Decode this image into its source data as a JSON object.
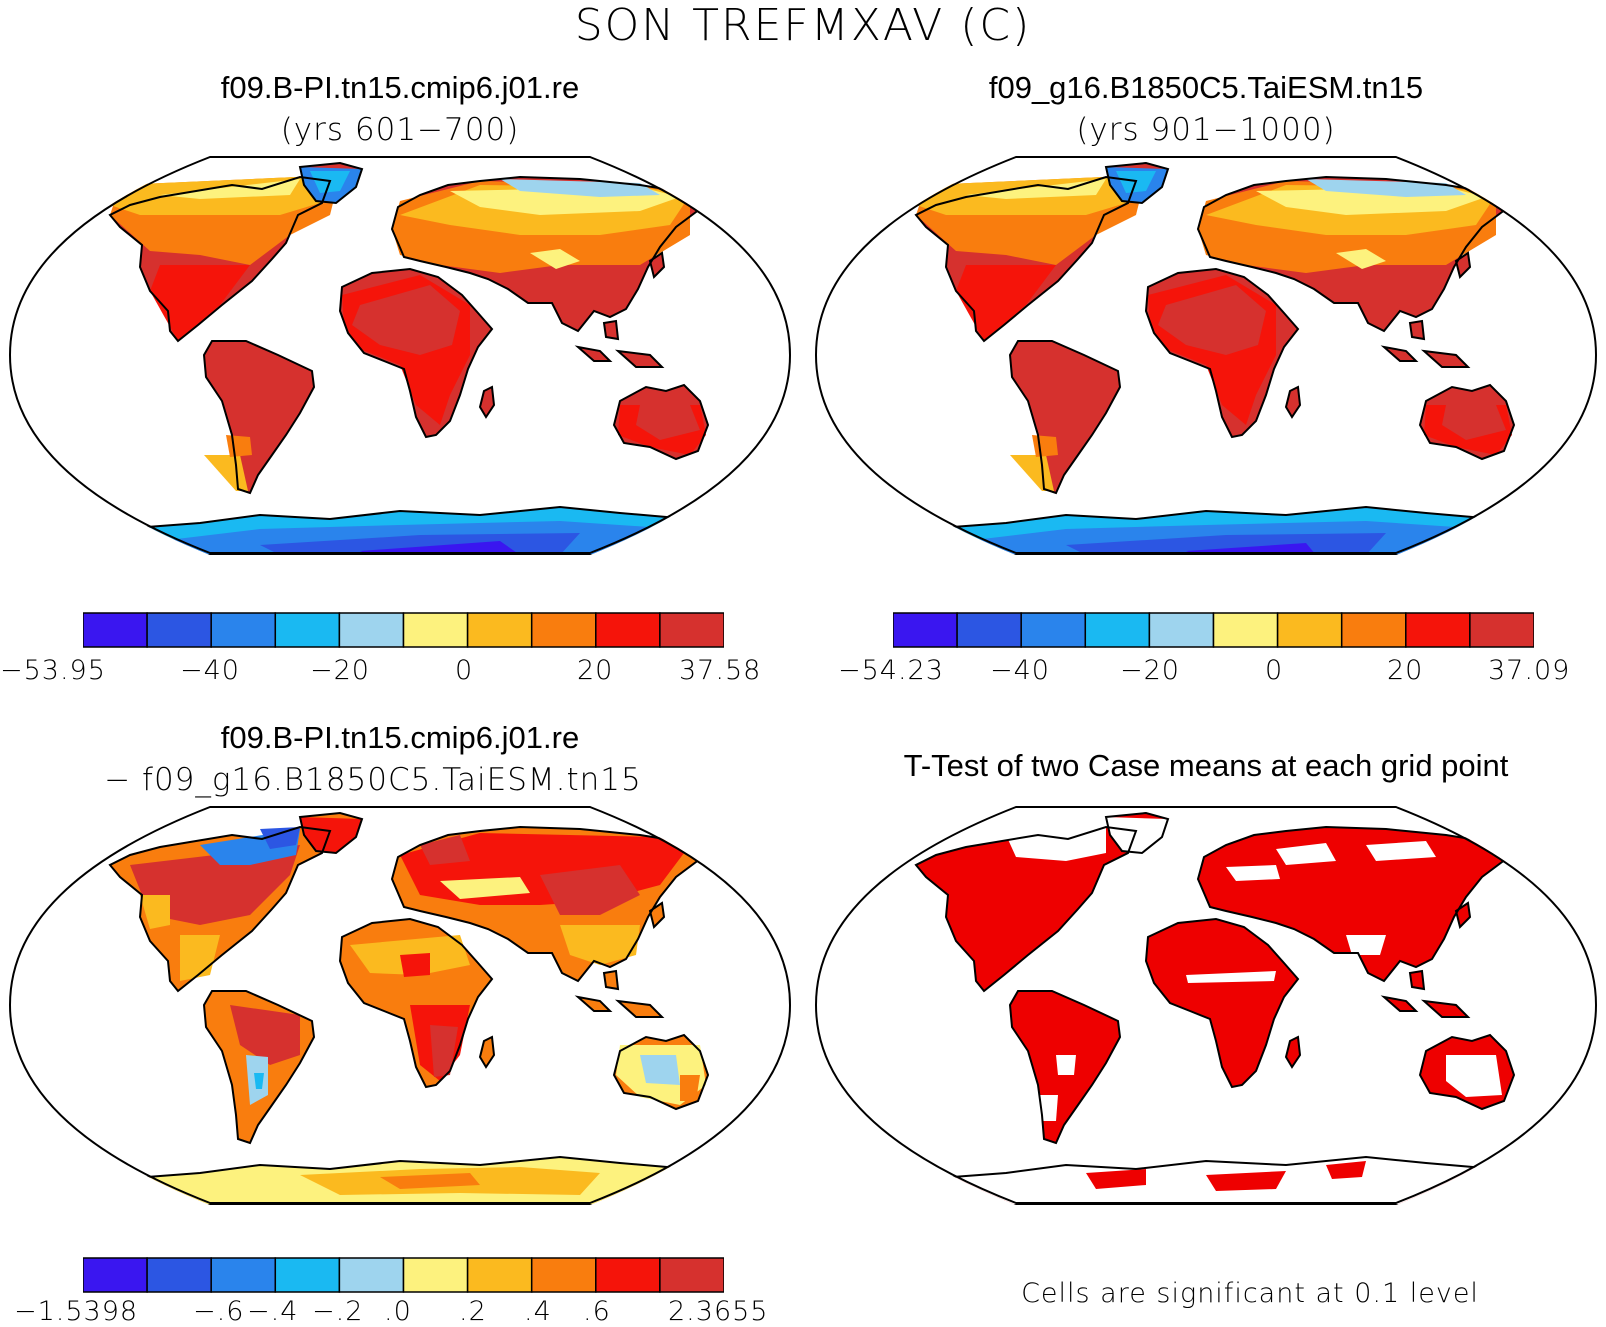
{
  "figure": {
    "title": "SON TREFMXAV (C)"
  },
  "panels": {
    "top_left": {
      "title": "f09.B-PI.tn15.cmip6.j01.re",
      "subtitle": "(yrs 601−700)",
      "colorbar": {
        "labels": [
          "−53.95",
          "−40",
          "−20",
          "0",
          "20",
          "37.58"
        ]
      }
    },
    "top_right": {
      "title": "f09_g16.B1850C5.TaiESM.tn15",
      "subtitle": "(yrs 901−1000)",
      "colorbar": {
        "labels": [
          "−54.23",
          "−40",
          "−20",
          "0",
          "20",
          "37.09"
        ]
      }
    },
    "bottom_left": {
      "title": "f09.B-PI.tn15.cmip6.j01.re",
      "subtitle": "− f09_g16.B1850C5.TaiESM.tn15",
      "colorbar": {
        "labels": [
          "−1.5398",
          "−.6",
          "−.4",
          "−.2",
          ".0",
          ".2",
          ".4",
          ".6",
          "2.3655"
        ]
      }
    },
    "bottom_right": {
      "title": "T-Test of two Case means at each grid point",
      "note": "Cells are significant at 0.1 level"
    }
  },
  "palette": [
    "#3a16f0",
    "#2c56e3",
    "#2a84ec",
    "#1ab9f2",
    "#9ed4ee",
    "#fdf27e",
    "#fbba1f",
    "#f97d0e",
    "#f5140a",
    "#d6312e"
  ],
  "significance_color": "#ee0000"
}
